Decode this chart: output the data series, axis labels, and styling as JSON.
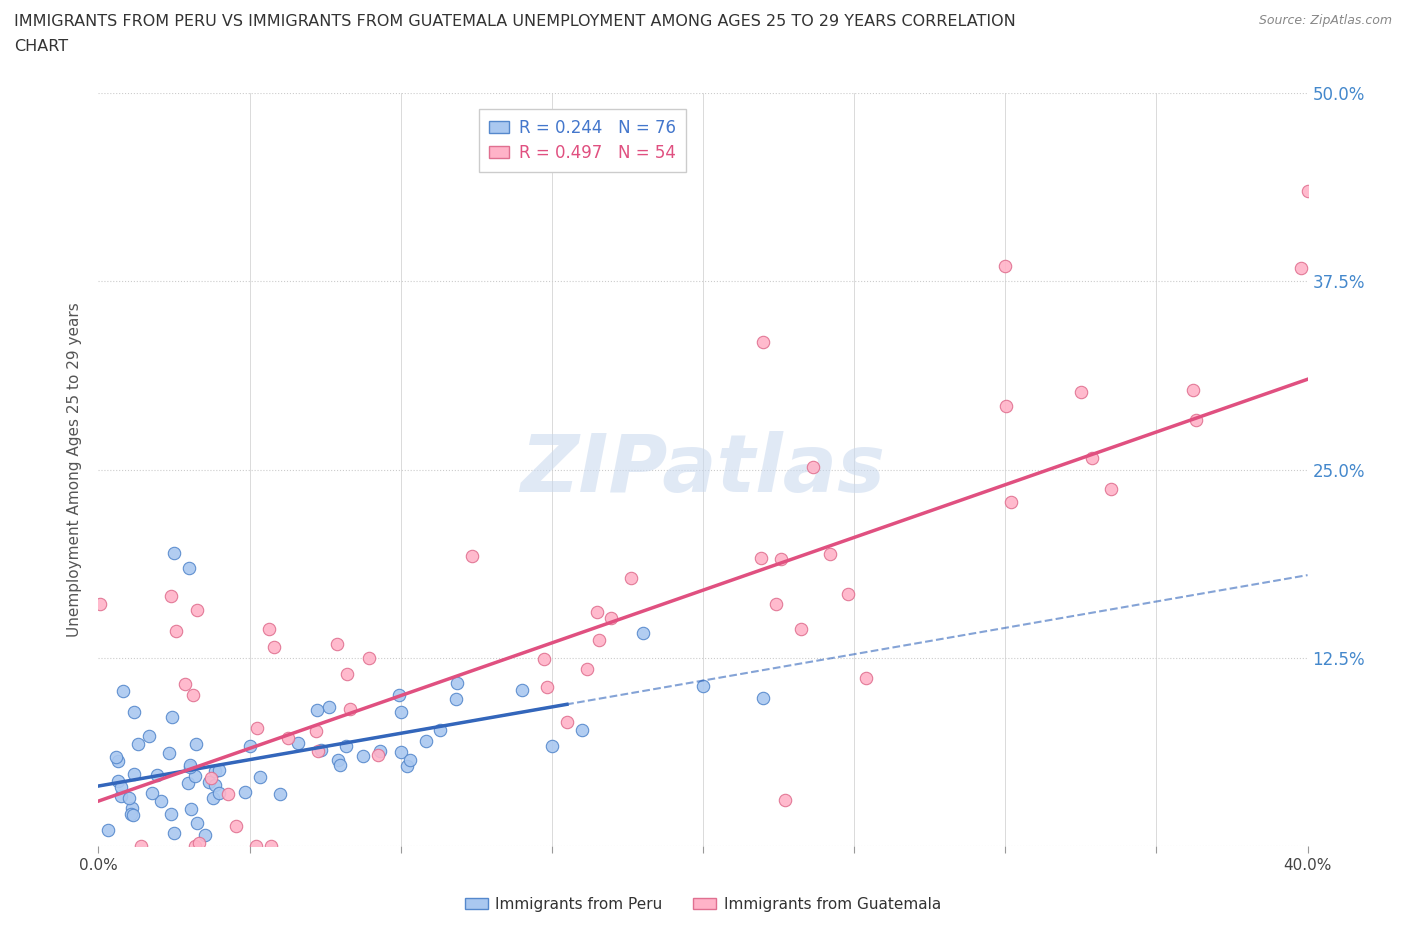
{
  "title_line1": "IMMIGRANTS FROM PERU VS IMMIGRANTS FROM GUATEMALA UNEMPLOYMENT AMONG AGES 25 TO 29 YEARS CORRELATION",
  "title_line2": "CHART",
  "source_text": "Source: ZipAtlas.com",
  "ylabel": "Unemployment Among Ages 25 to 29 years",
  "xlim": [
    0.0,
    0.4
  ],
  "ylim": [
    0.0,
    0.5
  ],
  "xticks": [
    0.0,
    0.05,
    0.1,
    0.15,
    0.2,
    0.25,
    0.3,
    0.35,
    0.4
  ],
  "xticklabels": [
    "0.0%",
    "",
    "",
    "",
    "",
    "",
    "",
    "",
    "40.0%"
  ],
  "yticks": [
    0.0,
    0.125,
    0.25,
    0.375,
    0.5
  ],
  "yticklabels": [
    "",
    "12.5%",
    "25.0%",
    "37.5%",
    "50.0%"
  ],
  "peru_color": "#aac8f0",
  "peru_edge_color": "#5588cc",
  "guatemala_color": "#ffb3c8",
  "guatemala_edge_color": "#e07090",
  "peru_line_color": "#3366bb",
  "guatemala_line_color": "#e05080",
  "peru_R": 0.244,
  "peru_N": 76,
  "guatemala_R": 0.497,
  "guatemala_N": 54,
  "watermark": "ZIPatlas",
  "grid_color": "#cccccc",
  "background_color": "#ffffff",
  "legend_peru_label": "Immigrants from Peru",
  "legend_guatemala_label": "Immigrants from Guatemala",
  "legend_peru_R_color": "#4477cc",
  "legend_guat_R_color": "#e05080"
}
